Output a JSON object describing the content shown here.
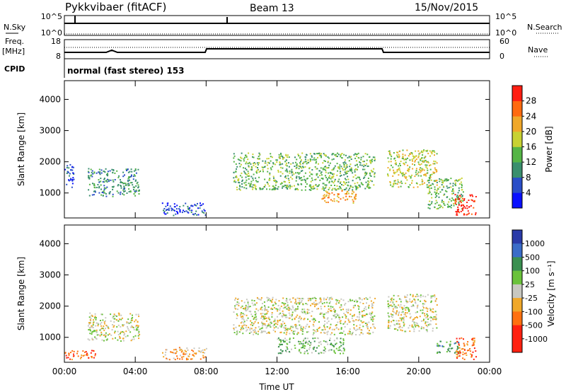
{
  "header": {
    "radar_name": "Pykkvibaer (fitACF)",
    "beam": "Beam 13",
    "date": "15/Nov/2015"
  },
  "strip_sky": {
    "label": "N.Sky",
    "left_ticks": [
      "10^5",
      "10^0"
    ],
    "right_ticks": [
      "10^5",
      "10^0"
    ],
    "right_label": "N.Search"
  },
  "strip_freq": {
    "label_top": "Freq.",
    "label_unit": "[MHz]",
    "left_ticks": [
      "18",
      "8"
    ],
    "right_ticks": [
      "60",
      "0"
    ],
    "right_label": "Nave"
  },
  "cpid": {
    "label": "CPID",
    "mode": "normal (fast stereo) 153"
  },
  "chart_data": [
    {
      "type": "heatmap",
      "quantity": "power",
      "ylabel": "Slant Range [km]",
      "xlabel": "",
      "y_ticks": [
        "1000",
        "2000",
        "3000",
        "4000"
      ],
      "ylim": [
        200,
        4600
      ],
      "colorbar": {
        "label": "Power [dB]",
        "ticks": [
          "4",
          "8",
          "12",
          "16",
          "20",
          "24",
          "28"
        ],
        "colors": [
          "#0a10ff",
          "#2a4ec8",
          "#3a8f6e",
          "#55b546",
          "#c8d232",
          "#f0a82a",
          "#ff6a10",
          "#ff1e12"
        ]
      },
      "regions": [
        {
          "t0": 0.0,
          "t1": 0.5,
          "r0": 1200,
          "r1": 2000,
          "level": 1
        },
        {
          "t0": 1.3,
          "t1": 4.2,
          "r0": 900,
          "r1": 1800,
          "level": 2
        },
        {
          "t0": 5.5,
          "t1": 8.0,
          "r0": 300,
          "r1": 700,
          "level": 1
        },
        {
          "t0": 9.5,
          "t1": 17.5,
          "r0": 1100,
          "r1": 2300,
          "level": 3
        },
        {
          "t0": 14.5,
          "t1": 16.5,
          "r0": 700,
          "r1": 1100,
          "level": 5
        },
        {
          "t0": 18.2,
          "t1": 21.0,
          "r0": 1200,
          "r1": 2400,
          "level": 4
        },
        {
          "t0": 20.5,
          "t1": 22.5,
          "r0": 500,
          "r1": 1500,
          "level": 3
        },
        {
          "t0": 22.0,
          "t1": 23.2,
          "r0": 300,
          "r1": 1000,
          "level": 7
        }
      ]
    },
    {
      "type": "heatmap",
      "quantity": "velocity",
      "ylabel": "Slant Range [km]",
      "xlabel": "Time UT",
      "x_ticks": [
        "00:00",
        "04:00",
        "08:00",
        "12:00",
        "16:00",
        "20:00",
        "00:00"
      ],
      "y_ticks": [
        "1000",
        "2000",
        "3000",
        "4000"
      ],
      "ylim": [
        200,
        4600
      ],
      "colorbar": {
        "label": "Velocity [m s⁻¹]",
        "ticks": [
          "1000",
          "500",
          "100",
          "25",
          "-25",
          "-100",
          "-500",
          "-1000"
        ],
        "colors": [
          "#2a3aa8",
          "#3a6cc8",
          "#3a8f50",
          "#6ac23a",
          "#c8c8c0",
          "#f0a82a",
          "#ff7010",
          "#ff2010"
        ]
      },
      "regions": [
        {
          "t0": 0.0,
          "t1": 1.8,
          "r0": 300,
          "r1": 600,
          "level": 6
        },
        {
          "t0": 1.3,
          "t1": 4.2,
          "r0": 900,
          "r1": 1800,
          "level": 4
        },
        {
          "t0": 5.5,
          "t1": 8.0,
          "r0": 300,
          "r1": 700,
          "level": 5
        },
        {
          "t0": 9.5,
          "t1": 17.5,
          "r0": 1100,
          "r1": 2300,
          "level": 4
        },
        {
          "t0": 12.0,
          "t1": 15.8,
          "r0": 500,
          "r1": 1000,
          "level": 3
        },
        {
          "t0": 18.2,
          "t1": 21.0,
          "r0": 1200,
          "r1": 2400,
          "level": 4
        },
        {
          "t0": 21.0,
          "t1": 22.3,
          "r0": 500,
          "r1": 900,
          "level": 2
        },
        {
          "t0": 22.0,
          "t1": 23.2,
          "r0": 300,
          "r1": 1000,
          "level": 6
        }
      ]
    }
  ]
}
